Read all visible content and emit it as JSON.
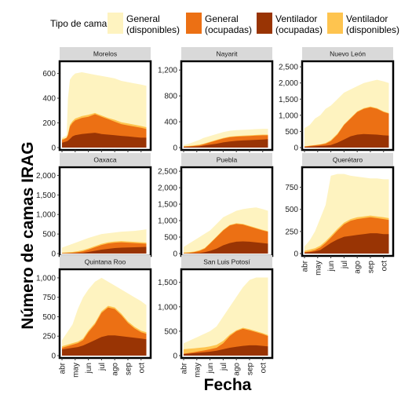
{
  "chart_data": {
    "type": "area",
    "ylabel": "Número de camas IRAG",
    "xlabel": "Fecha",
    "legend": {
      "title": "Tipo de cama",
      "placement": "top",
      "entries": [
        {
          "key": "gen_disp",
          "line1": "General",
          "line2": "(disponibles)",
          "color": "#FEF3C0"
        },
        {
          "key": "gen_ocup",
          "line1": "General",
          "line2": "(ocupadas)",
          "color": "#EC7014"
        },
        {
          "key": "vent_ocup",
          "line1": "Ventilador",
          "line2": "(ocupadas)",
          "color": "#993404"
        },
        {
          "key": "vent_disp",
          "line1": "Ventilador",
          "line2": "(disponibles)",
          "color": "#FEC44F"
        }
      ]
    },
    "x_months": [
      "abr",
      "may",
      "jun",
      "jul",
      "ago",
      "sep",
      "oct"
    ],
    "x_month_index_note": "x values are month positions: 0=abr-01 ... 6=oct-01",
    "panels": [
      {
        "state": "Morelos",
        "ylim": [
          0,
          680
        ],
        "yticks": [
          0,
          200,
          400,
          600
        ],
        "x": [
          0.0,
          0.2,
          0.35,
          0.45,
          0.6,
          0.8,
          1.0,
          1.5,
          2.0,
          2.5,
          3.0,
          3.5,
          4.0,
          4.5,
          5.0,
          5.5,
          6.0,
          6.4
        ],
        "vent_ocup": [
          40,
          45,
          50,
          55,
          70,
          90,
          100,
          110,
          115,
          120,
          110,
          105,
          100,
          95,
          90,
          85,
          80,
          80
        ],
        "gen_ocup": [
          60,
          70,
          80,
          100,
          170,
          200,
          220,
          240,
          250,
          270,
          250,
          230,
          210,
          190,
          180,
          170,
          160,
          150
        ],
        "vent_disp": [
          70,
          75,
          80,
          110,
          185,
          215,
          235,
          255,
          265,
          280,
          260,
          240,
          225,
          205,
          195,
          185,
          175,
          165
        ],
        "gen_disp": [
          80,
          90,
          100,
          400,
          550,
          580,
          600,
          610,
          600,
          590,
          580,
          570,
          560,
          540,
          530,
          520,
          510,
          500
        ]
      },
      {
        "state": "Nayarit",
        "ylim": [
          0,
          1300
        ],
        "yticks": [
          0,
          400,
          800,
          1200
        ],
        "x": [
          0.0,
          0.4,
          0.8,
          1.2,
          1.5,
          2.0,
          2.5,
          3.0,
          3.5,
          4.0,
          4.5,
          5.0,
          5.5,
          6.0,
          6.4
        ],
        "vent_ocup": [
          10,
          12,
          15,
          20,
          30,
          45,
          60,
          80,
          95,
          105,
          110,
          115,
          120,
          125,
          130
        ],
        "gen_ocup": [
          15,
          20,
          25,
          35,
          50,
          80,
          110,
          140,
          160,
          170,
          175,
          180,
          185,
          190,
          190
        ],
        "vent_disp": [
          20,
          25,
          35,
          45,
          60,
          90,
          120,
          150,
          170,
          180,
          185,
          190,
          195,
          200,
          200
        ],
        "gen_disp": [
          40,
          60,
          90,
          120,
          150,
          180,
          210,
          240,
          260,
          270,
          275,
          280,
          285,
          290,
          290
        ]
      },
      {
        "state": "Nuevo León",
        "ylim": [
          0,
          2600
        ],
        "yticks": [
          0,
          500,
          1000,
          1500,
          2000,
          2500
        ],
        "x": [
          0.0,
          0.4,
          0.8,
          1.2,
          1.6,
          2.0,
          2.5,
          3.0,
          3.5,
          4.0,
          4.5,
          5.0,
          5.5,
          6.0,
          6.4
        ],
        "vent_ocup": [
          20,
          30,
          40,
          50,
          60,
          80,
          150,
          250,
          350,
          400,
          420,
          410,
          400,
          380,
          370
        ],
        "gen_ocup": [
          30,
          50,
          70,
          90,
          120,
          200,
          400,
          700,
          900,
          1100,
          1200,
          1250,
          1200,
          1100,
          1050
        ],
        "vent_disp": [
          40,
          60,
          80,
          100,
          140,
          230,
          430,
          720,
          920,
          1120,
          1220,
          1270,
          1220,
          1120,
          1070
        ],
        "gen_disp": [
          600,
          700,
          900,
          1000,
          1200,
          1300,
          1500,
          1700,
          1800,
          1900,
          2000,
          2050,
          2100,
          2050,
          2000
        ]
      },
      {
        "state": "Oaxaca",
        "ylim": [
          0,
          2150
        ],
        "yticks": [
          0,
          500,
          1000,
          1500,
          2000
        ],
        "x": [
          0.0,
          0.4,
          0.8,
          1.2,
          1.6,
          2.0,
          2.5,
          3.0,
          3.5,
          4.0,
          4.5,
          5.0,
          5.5,
          6.0,
          6.4
        ],
        "vent_ocup": [
          5,
          8,
          10,
          15,
          20,
          40,
          70,
          100,
          120,
          140,
          150,
          155,
          160,
          165,
          170
        ],
        "gen_ocup": [
          8,
          12,
          20,
          35,
          60,
          100,
          160,
          220,
          260,
          280,
          290,
          280,
          270,
          260,
          250
        ],
        "vent_disp": [
          20,
          30,
          40,
          60,
          90,
          130,
          190,
          250,
          290,
          310,
          320,
          310,
          300,
          290,
          280
        ],
        "gen_disp": [
          150,
          200,
          250,
          300,
          350,
          400,
          450,
          500,
          520,
          540,
          560,
          570,
          580,
          600,
          620
        ]
      },
      {
        "state": "Puebla",
        "ylim": [
          0,
          2550
        ],
        "yticks": [
          0,
          500,
          1000,
          1500,
          2000,
          2500
        ],
        "x": [
          0.0,
          0.4,
          0.8,
          1.2,
          1.6,
          2.0,
          2.5,
          3.0,
          3.5,
          4.0,
          4.5,
          5.0,
          5.5,
          6.0,
          6.4
        ],
        "vent_ocup": [
          5,
          10,
          15,
          20,
          40,
          80,
          150,
          250,
          320,
          360,
          370,
          360,
          340,
          320,
          300
        ],
        "gen_ocup": [
          10,
          20,
          40,
          80,
          150,
          300,
          500,
          700,
          850,
          900,
          880,
          820,
          760,
          700,
          660
        ],
        "vent_disp": [
          30,
          40,
          60,
          100,
          170,
          320,
          520,
          720,
          870,
          920,
          900,
          840,
          780,
          720,
          680
        ],
        "gen_disp": [
          200,
          300,
          400,
          500,
          600,
          700,
          900,
          1100,
          1200,
          1300,
          1350,
          1380,
          1400,
          1350,
          1300
        ]
      },
      {
        "state": "Querétaro",
        "ylim": [
          0,
          950
        ],
        "yticks": [
          0,
          250,
          500,
          750
        ],
        "x": [
          0.0,
          0.4,
          0.8,
          1.2,
          1.6,
          2.0,
          2.5,
          3.0,
          3.5,
          4.0,
          4.5,
          5.0,
          5.5,
          6.0,
          6.4
        ],
        "vent_ocup": [
          10,
          15,
          25,
          40,
          80,
          120,
          160,
          190,
          200,
          210,
          220,
          230,
          230,
          220,
          220
        ],
        "gen_ocup": [
          15,
          25,
          40,
          70,
          120,
          180,
          260,
          330,
          370,
          390,
          400,
          410,
          400,
          390,
          380
        ],
        "vent_disp": [
          30,
          45,
          60,
          90,
          140,
          200,
          280,
          350,
          390,
          410,
          420,
          430,
          420,
          410,
          400
        ],
        "gen_disp": [
          80,
          150,
          250,
          400,
          550,
          880,
          900,
          900,
          880,
          870,
          860,
          850,
          850,
          840,
          840
        ]
      },
      {
        "state": "Quintana Roo",
        "ylim": [
          0,
          1080
        ],
        "yticks": [
          0,
          250,
          500,
          750,
          1000
        ],
        "x": [
          0.0,
          0.4,
          0.8,
          1.2,
          1.6,
          2.0,
          2.5,
          3.0,
          3.5,
          4.0,
          4.5,
          5.0,
          5.5,
          6.0,
          6.4
        ],
        "vent_ocup": [
          80,
          90,
          100,
          110,
          130,
          160,
          200,
          240,
          260,
          260,
          250,
          240,
          230,
          220,
          210
        ],
        "gen_ocup": [
          100,
          120,
          140,
          160,
          200,
          300,
          400,
          550,
          620,
          600,
          520,
          420,
          350,
          300,
          280
        ],
        "vent_disp": [
          120,
          140,
          160,
          180,
          220,
          320,
          420,
          570,
          640,
          620,
          540,
          440,
          370,
          320,
          300
        ],
        "gen_disp": [
          200,
          300,
          400,
          600,
          750,
          850,
          950,
          1000,
          950,
          900,
          850,
          800,
          750,
          700,
          650
        ]
      },
      {
        "state": "San Luis Potosí",
        "ylim": [
          0,
          1720
        ],
        "yticks": [
          0,
          500,
          1000,
          1500
        ],
        "x": [
          0.0,
          0.4,
          0.8,
          1.2,
          1.6,
          2.0,
          2.5,
          3.0,
          3.5,
          4.0,
          4.5,
          5.0,
          5.5,
          6.0,
          6.4
        ],
        "vent_ocup": [
          30,
          40,
          50,
          60,
          70,
          80,
          100,
          130,
          160,
          180,
          200,
          210,
          210,
          200,
          190
        ],
        "gen_ocup": [
          40,
          55,
          70,
          90,
          110,
          130,
          160,
          250,
          400,
          500,
          550,
          520,
          480,
          440,
          400
        ],
        "vent_disp": [
          130,
          140,
          150,
          160,
          170,
          190,
          220,
          300,
          430,
          520,
          570,
          540,
          500,
          460,
          420
        ],
        "gen_disp": [
          250,
          300,
          350,
          400,
          450,
          500,
          600,
          800,
          1000,
          1200,
          1400,
          1550,
          1600,
          1600,
          1600
        ]
      }
    ]
  }
}
